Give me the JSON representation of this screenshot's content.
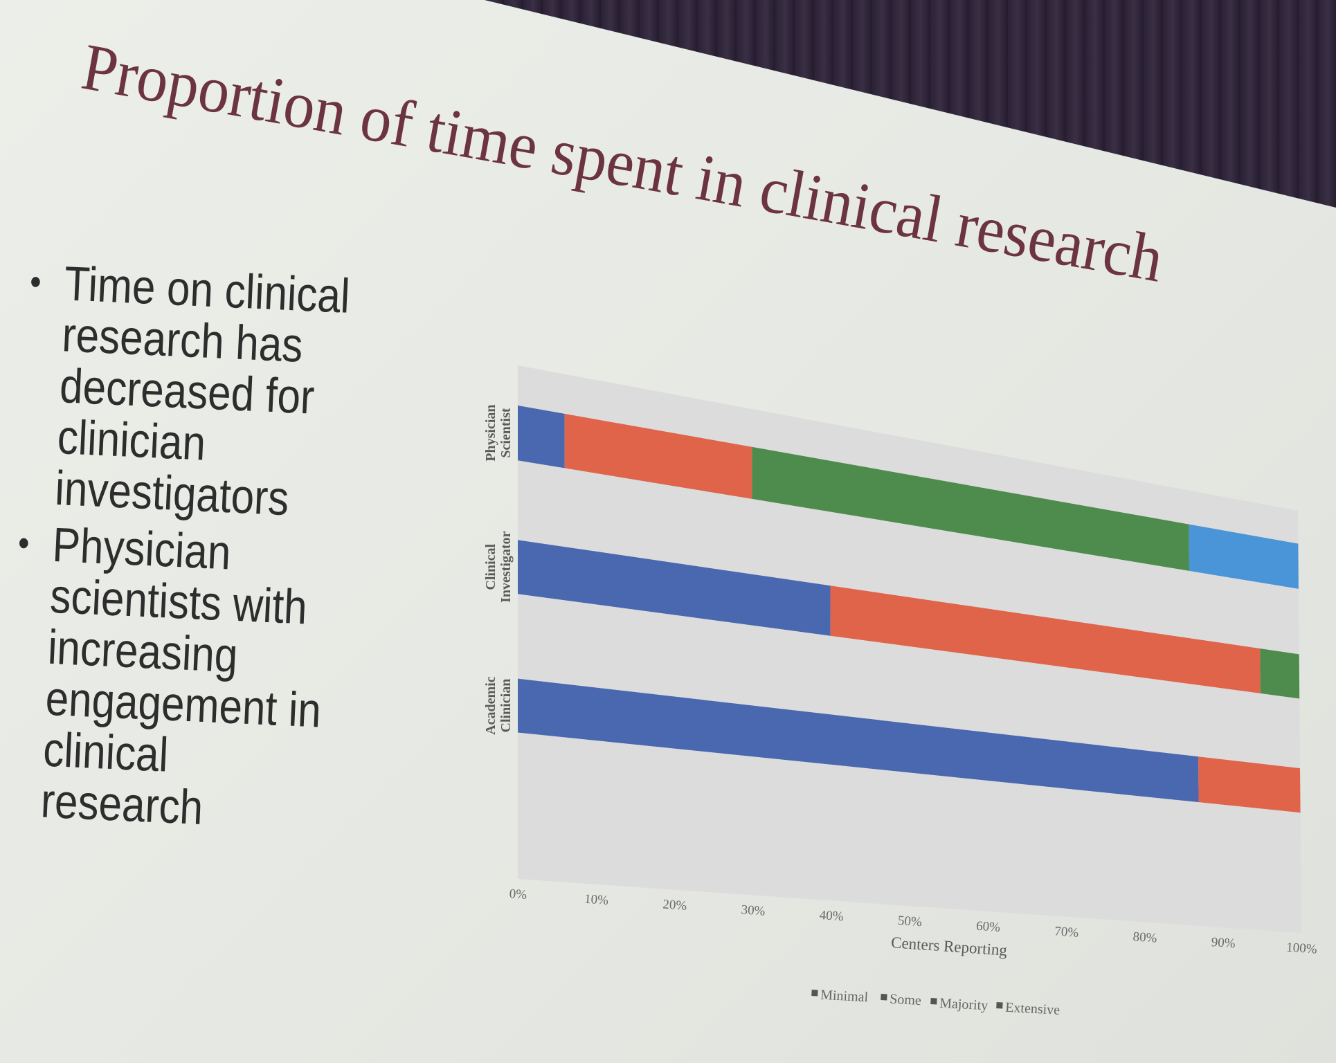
{
  "title": "Proportion of time spent in clinical research",
  "bullets": [
    "Time on clinical research has decreased for clinician investigators",
    "Physician scientists with increasing engagement in clinical research"
  ],
  "chart_data": {
    "type": "bar",
    "orientation": "horizontal",
    "stacked": true,
    "categories": [
      "Physician Scientist",
      "Clinical Investigator",
      "Academic Clinician"
    ],
    "series": [
      {
        "name": "Minimal",
        "color": "#4a68b0",
        "values": [
          6,
          40,
          87
        ]
      },
      {
        "name": "Some",
        "color": "#e0644a",
        "values": [
          24,
          55,
          13
        ]
      },
      {
        "name": "Majority",
        "color": "#4e8c4e",
        "values": [
          56,
          5,
          0
        ]
      },
      {
        "name": "Extensive",
        "color": "#4a94d8",
        "values": [
          14,
          0,
          0
        ]
      }
    ],
    "x_ticks": [
      "0%",
      "10%",
      "20%",
      "30%",
      "40%",
      "50%",
      "60%",
      "70%",
      "80%",
      "90%",
      "100%"
    ],
    "xlabel": "Centers Reporting",
    "ylabel": "",
    "xlim": [
      0,
      100
    ],
    "legend_position": "bottom",
    "grid": false
  }
}
